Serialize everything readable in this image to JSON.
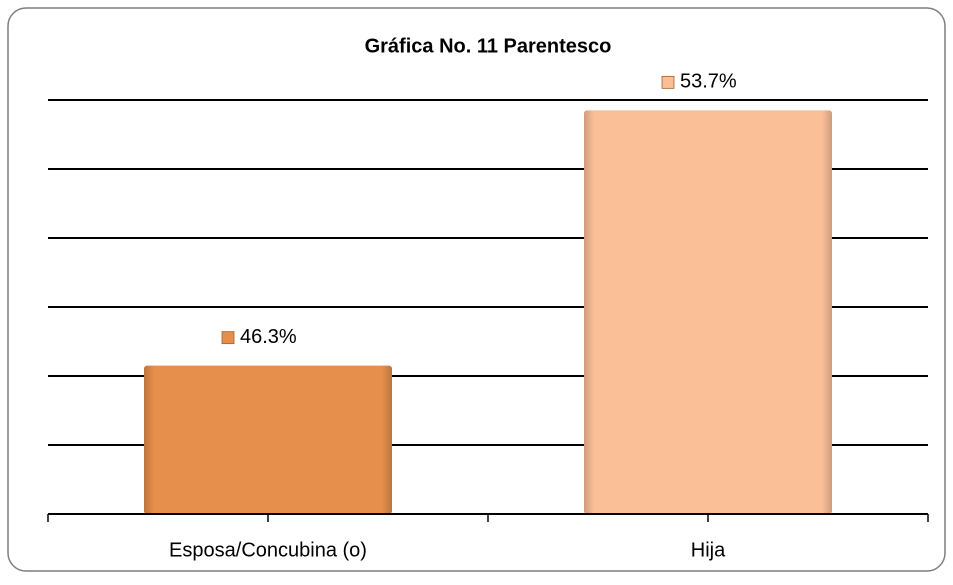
{
  "chart_data": {
    "type": "bar",
    "title": "Gráfica No. 11 Parentesco",
    "categories": [
      "Esposa/Concubina (o)",
      "Hija"
    ],
    "values": [
      46.3,
      53.7
    ],
    "value_labels": [
      "46.3%",
      "53.7%"
    ],
    "colors": [
      "#e68e4b",
      "#fbbf98"
    ],
    "ylim": [
      42,
      54
    ],
    "yticks": [
      42,
      44,
      46,
      48,
      50,
      52,
      54
    ],
    "grid": true
  }
}
